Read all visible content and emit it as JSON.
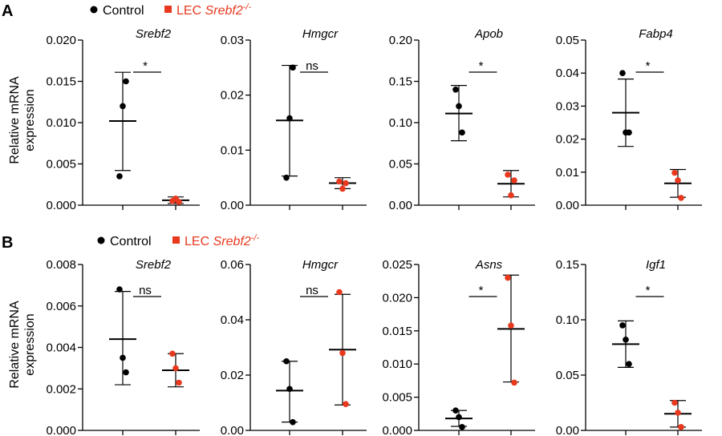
{
  "panels": [
    {
      "letter": "A",
      "legend": {
        "control_label": "Control",
        "lec_prefix": "LEC ",
        "lec_gene": "Srebf2",
        "lec_superscript": "-/-"
      },
      "ylabel_line1": "Relative mRNA",
      "ylabel_line2": "expression"
    },
    {
      "letter": "B",
      "legend": {
        "control_label": "Control",
        "lec_prefix": "LEC ",
        "lec_gene": "Srebf2",
        "lec_superscript": "-/-"
      },
      "ylabel_line1": "Relative mRNA",
      "ylabel_line2": "expression"
    }
  ],
  "colors": {
    "control": "#000000",
    "lec": "#e8391f"
  },
  "chart_data": [
    {
      "type": "scatter",
      "panel": "A",
      "title": "Srebf2",
      "ylim": [
        0,
        0.02
      ],
      "yticks": [
        "0.000",
        "0.005",
        "0.010",
        "0.015",
        "0.020"
      ],
      "ytick_values": [
        0,
        0.005,
        0.01,
        0.015,
        0.02
      ],
      "series": [
        {
          "group": "control",
          "points": [
            0.0035,
            0.012,
            0.015
          ],
          "mean": 0.0102,
          "err_low": 0.0042,
          "err_high": 0.0161
        },
        {
          "group": "lec",
          "points": [
            0.0005,
            0.0008,
            0.0004
          ],
          "mean": 0.0006,
          "err_low": 0.0002,
          "err_high": 0.001
        }
      ],
      "significance": "*"
    },
    {
      "type": "scatter",
      "panel": "A",
      "title": "Hmgcr",
      "ylim": [
        0,
        0.03
      ],
      "yticks": [
        "0.00",
        "0.01",
        "0.02",
        "0.03"
      ],
      "ytick_values": [
        0,
        0.01,
        0.02,
        0.03
      ],
      "series": [
        {
          "group": "control",
          "points": [
            0.005,
            0.0158,
            0.025
          ],
          "mean": 0.0154,
          "err_low": 0.0053,
          "err_high": 0.0254
        },
        {
          "group": "lec",
          "points": [
            0.0043,
            0.003,
            0.004
          ],
          "mean": 0.004,
          "err_low": 0.003,
          "err_high": 0.005
        }
      ],
      "significance": "ns"
    },
    {
      "type": "scatter",
      "panel": "A",
      "title": "Apob",
      "ylim": [
        0,
        0.2
      ],
      "yticks": [
        "0.00",
        "0.05",
        "0.10",
        "0.15",
        "0.20"
      ],
      "ytick_values": [
        0,
        0.05,
        0.1,
        0.15,
        0.2
      ],
      "series": [
        {
          "group": "control",
          "points": [
            0.14,
            0.12,
            0.088
          ],
          "mean": 0.111,
          "err_low": 0.078,
          "err_high": 0.145
        },
        {
          "group": "lec",
          "points": [
            0.037,
            0.012,
            0.03
          ],
          "mean": 0.026,
          "err_low": 0.01,
          "err_high": 0.042
        }
      ],
      "significance": "*"
    },
    {
      "type": "scatter",
      "panel": "A",
      "title": "Fabp4",
      "ylim": [
        0,
        0.05
      ],
      "yticks": [
        "0.00",
        "0.01",
        "0.02",
        "0.03",
        "0.04",
        "0.05"
      ],
      "ytick_values": [
        0,
        0.01,
        0.02,
        0.03,
        0.04,
        0.05
      ],
      "series": [
        {
          "group": "control",
          "points": [
            0.04,
            0.022,
            0.022
          ],
          "mean": 0.028,
          "err_low": 0.0178,
          "err_high": 0.0382
        },
        {
          "group": "lec",
          "points": [
            0.0098,
            0.0075,
            0.0022
          ],
          "mean": 0.0066,
          "err_low": 0.0024,
          "err_high": 0.0108
        }
      ],
      "significance": "*"
    },
    {
      "type": "scatter",
      "panel": "B",
      "title": "Srebf2",
      "ylim": [
        0,
        0.008
      ],
      "yticks": [
        "0.000",
        "0.002",
        "0.004",
        "0.006",
        "0.008"
      ],
      "ytick_values": [
        0,
        0.002,
        0.004,
        0.006,
        0.008
      ],
      "series": [
        {
          "group": "control",
          "points": [
            0.0068,
            0.0035,
            0.0028
          ],
          "mean": 0.0044,
          "err_low": 0.0022,
          "err_high": 0.0067
        },
        {
          "group": "lec",
          "points": [
            0.0037,
            0.003,
            0.0023
          ],
          "mean": 0.0029,
          "err_low": 0.0021,
          "err_high": 0.0037
        }
      ],
      "significance": "ns"
    },
    {
      "type": "scatter",
      "panel": "B",
      "title": "Hmgcr",
      "ylim": [
        0,
        0.06
      ],
      "yticks": [
        "0.00",
        "0.02",
        "0.04",
        "0.06"
      ],
      "ytick_values": [
        0,
        0.02,
        0.04,
        0.06
      ],
      "series": [
        {
          "group": "control",
          "points": [
            0.025,
            0.015,
            0.003
          ],
          "mean": 0.0144,
          "err_low": 0.003,
          "err_high": 0.025
        },
        {
          "group": "lec",
          "points": [
            0.05,
            0.028,
            0.0095
          ],
          "mean": 0.0292,
          "err_low": 0.0092,
          "err_high": 0.0492
        },
        {
          "group": "ns_ref",
          "points": []
        }
      ],
      "significance": "ns"
    },
    {
      "type": "scatter",
      "panel": "B",
      "title": "Asns",
      "ylim": [
        0,
        0.025
      ],
      "yticks": [
        "0.000",
        "0.005",
        "0.010",
        "0.015",
        "0.020",
        "0.025"
      ],
      "ytick_values": [
        0,
        0.005,
        0.01,
        0.015,
        0.02,
        0.025
      ],
      "series": [
        {
          "group": "control",
          "points": [
            0.003,
            0.002,
            0.0005
          ],
          "mean": 0.0018,
          "err_low": 0.0006,
          "err_high": 0.003
        },
        {
          "group": "lec",
          "points": [
            0.023,
            0.0158,
            0.0072
          ],
          "mean": 0.0153,
          "err_low": 0.0073,
          "err_high": 0.0234
        }
      ],
      "significance": "*"
    },
    {
      "type": "scatter",
      "panel": "B",
      "title": "Igf1",
      "ylim": [
        0,
        0.15
      ],
      "yticks": [
        "0.00",
        "0.05",
        "0.10",
        "0.15"
      ],
      "ytick_values": [
        0,
        0.05,
        0.1,
        0.15
      ],
      "series": [
        {
          "group": "control",
          "points": [
            0.095,
            0.082,
            0.06
          ],
          "mean": 0.078,
          "err_low": 0.057,
          "err_high": 0.099
        },
        {
          "group": "lec",
          "points": [
            0.025,
            0.016,
            0.003
          ],
          "mean": 0.015,
          "err_low": 0.003,
          "err_high": 0.027
        }
      ],
      "significance": "*"
    }
  ]
}
